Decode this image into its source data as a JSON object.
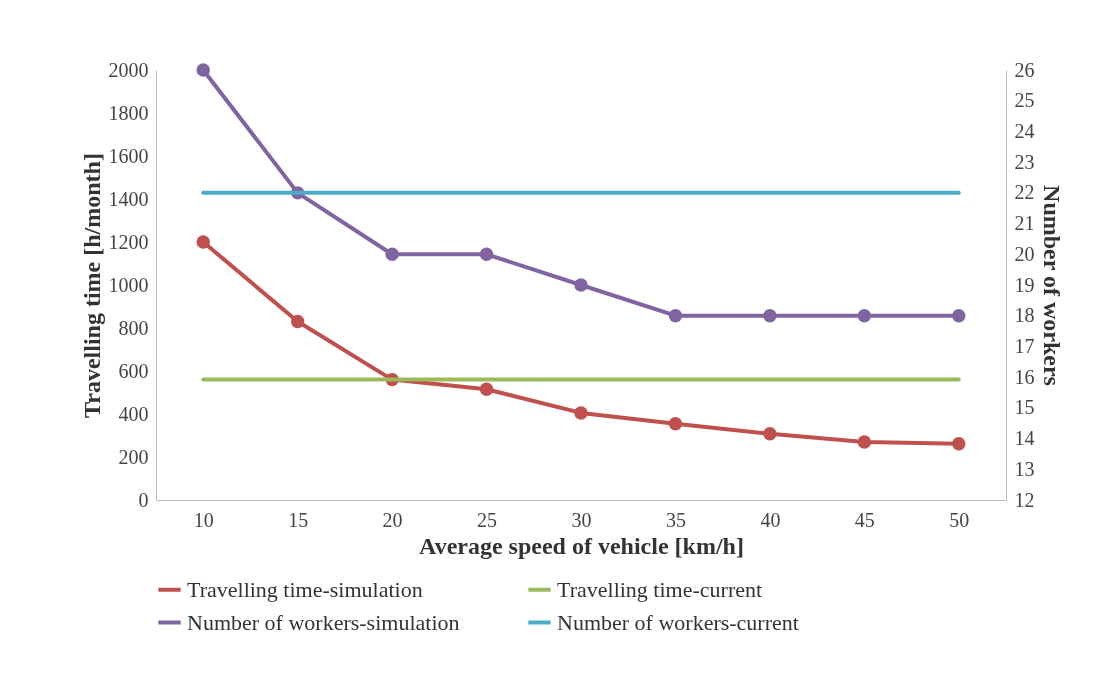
{
  "chart_data": {
    "type": "line",
    "xlabel": "Average speed of vehicle [km/h]",
    "ylabel": "Travelling time [h/month]",
    "y2label": "Number of workers",
    "categories": [
      "10",
      "15",
      "20",
      "25",
      "30",
      "35",
      "40",
      "45",
      "50"
    ],
    "series": [
      {
        "name": "Travelling time-simulation",
        "color": "#c0504d",
        "marker": "circle",
        "values": [
          1200,
          830,
          560,
          515,
          405,
          355,
          308,
          270,
          262
        ]
      },
      {
        "name": "Travelling time-current",
        "color": "#9bbb59",
        "marker": "none",
        "values": [
          560,
          560,
          560,
          560,
          560,
          560,
          560,
          560,
          560
        ]
      },
      {
        "name": "Number of workers-simulation",
        "color": "#8064a2",
        "marker": "circle",
        "axis": "y2",
        "values": [
          26,
          22,
          20,
          20,
          19,
          18,
          18,
          18,
          18
        ]
      },
      {
        "name": "Number of workers-current",
        "color": "#4bacc6",
        "marker": "none",
        "axis": "y2",
        "values": [
          22,
          22,
          22,
          22,
          22,
          22,
          22,
          22,
          22
        ]
      }
    ],
    "ylim": [
      0,
      2000
    ],
    "yticks": [
      0,
      200,
      400,
      600,
      800,
      1000,
      1200,
      1400,
      1600,
      1800,
      2000
    ],
    "y2lim": [
      12,
      26
    ],
    "y2ticks": [
      12,
      13,
      14,
      15,
      16,
      17,
      18,
      19,
      20,
      21,
      22,
      23,
      24,
      25,
      26
    ],
    "legend": "bottom"
  }
}
